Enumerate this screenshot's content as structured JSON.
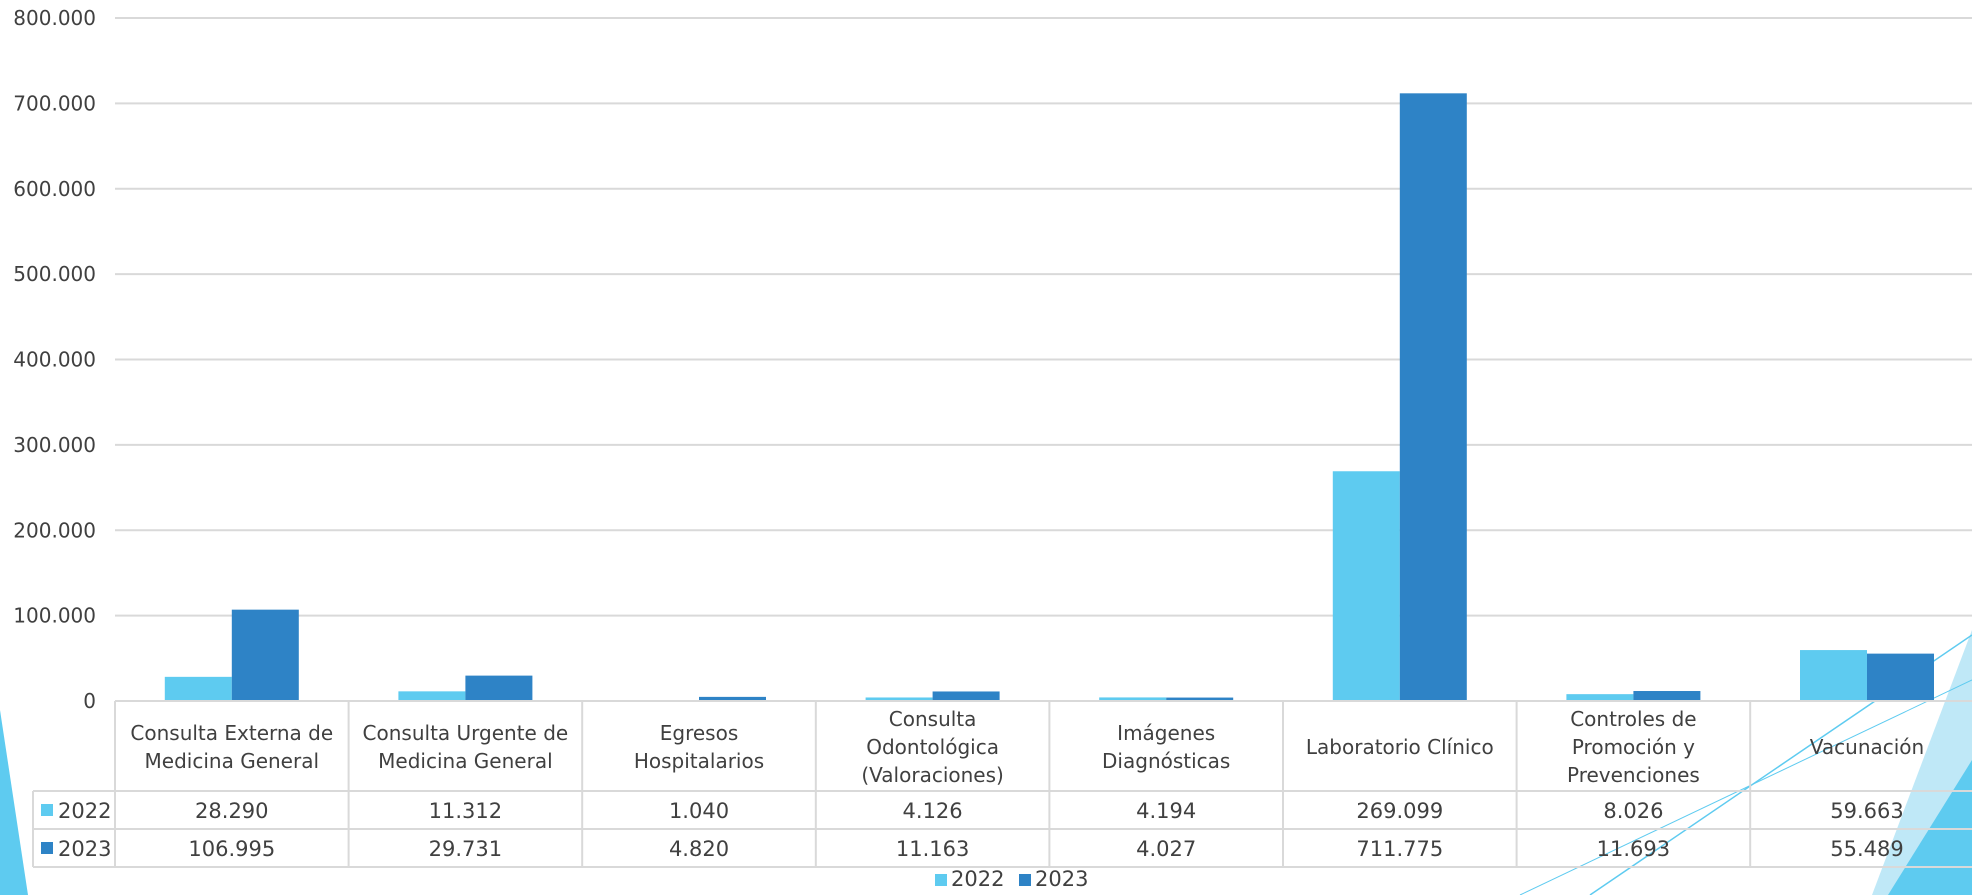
{
  "chart_data": {
    "type": "bar",
    "categories": [
      [
        "Consulta Externa de",
        "Medicina General"
      ],
      [
        "Consulta Urgente de",
        "Medicina General"
      ],
      [
        "Egresos",
        "Hospitalarios"
      ],
      [
        "Consulta",
        "Odontológica",
        "(Valoraciones)"
      ],
      [
        "Imágenes",
        "Diagnósticas"
      ],
      [
        "Laboratorio Clínico"
      ],
      [
        "Controles de",
        "Promoción y",
        "Prevenciones"
      ],
      [
        "Vacunación"
      ]
    ],
    "series": [
      {
        "name": "2022",
        "color": "#5ECBF0",
        "values": [
          28290,
          11312,
          1040,
          4126,
          4194,
          269099,
          8026,
          59663
        ],
        "labels": [
          "28.290",
          "11.312",
          "1.040",
          "4.126",
          "4.194",
          "269.099",
          "8.026",
          "59.663"
        ]
      },
      {
        "name": "2023",
        "color": "#2E83C6",
        "values": [
          106995,
          29731,
          4820,
          11163,
          4027,
          711775,
          11693,
          55489
        ],
        "labels": [
          "106.995",
          "29.731",
          "4.820",
          "11.163",
          "4.027",
          "711.775",
          "11.693",
          "55.489"
        ]
      }
    ],
    "ylim": [
      0,
      800000
    ],
    "yticks": [
      0,
      100000,
      200000,
      300000,
      400000,
      500000,
      600000,
      700000,
      800000
    ],
    "ytick_labels": [
      "0",
      "100.000",
      "200.000",
      "300.000",
      "400.000",
      "500.000",
      "600.000",
      "700.000",
      "800.000"
    ],
    "grid": true,
    "data_table": true,
    "legend": {
      "position": "bottom",
      "entries": [
        "2022",
        "2023"
      ]
    },
    "colors": {
      "gridline": "#D9D9D9",
      "decoration_light": "#5ECBF0",
      "decoration_pale": "#BFE8F7"
    }
  }
}
